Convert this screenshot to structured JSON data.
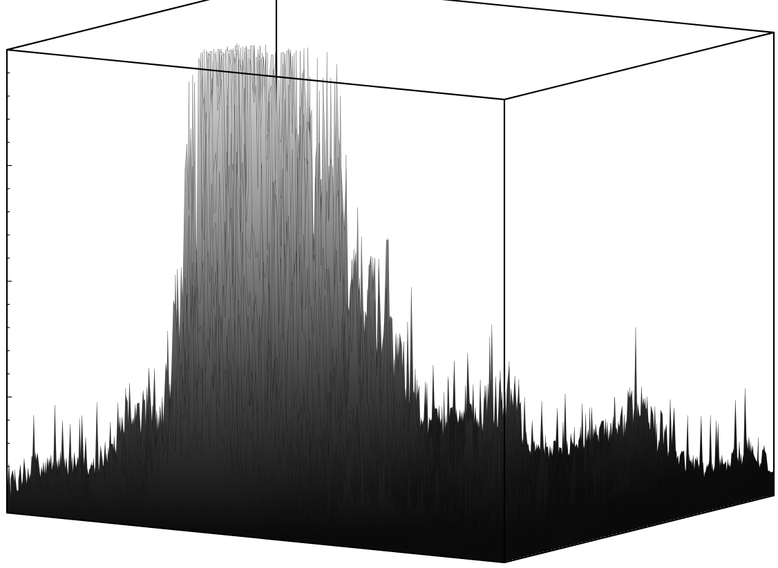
{
  "chart_data": {
    "type": "surface",
    "title": "",
    "xlabel": "",
    "ylabel": "",
    "zlabel": "",
    "grid": false,
    "legend": "none",
    "x_range": [
      0,
      1
    ],
    "y_range": [
      0,
      1
    ],
    "z_range": [
      0,
      1
    ],
    "z_ticks": [
      0,
      0.05,
      0.1,
      0.15,
      0.2,
      0.25,
      0.3,
      0.35,
      0.4,
      0.45,
      0.5,
      0.55,
      0.6,
      0.65,
      0.7,
      0.75,
      0.8,
      0.85,
      0.9,
      0.95,
      1.0
    ],
    "z_tick_labels": [],
    "colormap": {
      "low": "#0a0a0a",
      "high": "#d8d8d8"
    },
    "box_color": "#000000",
    "peaks": [
      {
        "x": 0.34,
        "y": 0.22,
        "z": 1.0
      },
      {
        "x": 0.41,
        "y": 0.22,
        "z": 1.0
      },
      {
        "x": 0.3,
        "y": 0.22,
        "z": 0.85
      },
      {
        "x": 0.48,
        "y": 0.3,
        "z": 0.62
      },
      {
        "x": 0.56,
        "y": 0.36,
        "z": 0.46
      },
      {
        "x": 0.2,
        "y": 0.1,
        "z": 0.22
      },
      {
        "x": 0.7,
        "y": 0.55,
        "z": 0.2
      },
      {
        "x": 0.85,
        "y": 0.75,
        "z": 0.14
      }
    ]
  }
}
